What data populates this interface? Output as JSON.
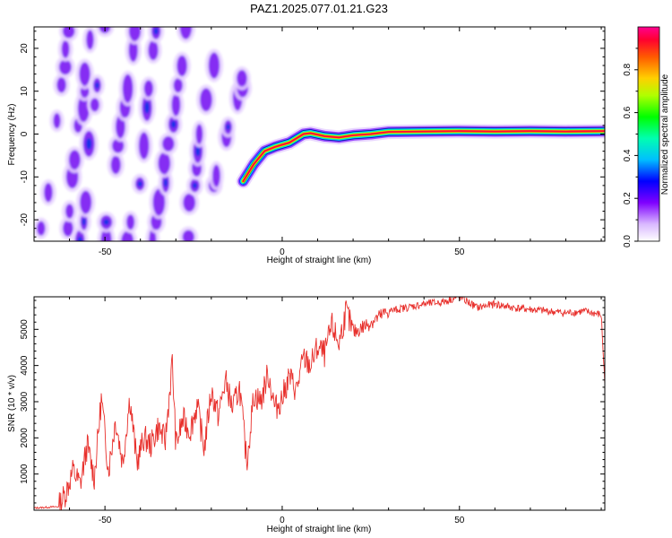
{
  "title": "PAZ1.2025.077.01.21.G23",
  "chart_data": [
    {
      "type": "heatmap",
      "xlabel": "Height of straight line (km)",
      "ylabel": "Frequency (Hz)",
      "xlim": [
        -70,
        91
      ],
      "ylim": [
        -25,
        25
      ],
      "xticks": [
        -50,
        0,
        50
      ],
      "yticks": [
        -20,
        -10,
        0,
        10,
        20
      ],
      "colorbar": {
        "label": "Normalized spectral amplitude",
        "range": [
          0,
          1
        ],
        "ticks": [
          0.0,
          0.2,
          0.4,
          0.6,
          0.8
        ],
        "tick_labels": [
          "0.0",
          "0.2",
          "0.4",
          "0.6",
          "0.8"
        ]
      },
      "ridge": {
        "height_km": [
          -11,
          -8,
          -5,
          -2,
          0,
          2,
          4,
          6,
          8,
          12,
          16,
          20,
          25,
          30,
          40,
          50,
          60,
          70,
          80,
          91
        ],
        "frequency_hz": [
          -11,
          -7,
          -4,
          -3,
          -2.5,
          -2,
          -1,
          0,
          0.2,
          -0.5,
          -0.8,
          -0.3,
          0,
          0.5,
          0.6,
          0.7,
          0.6,
          0.7,
          0.6,
          0.7
        ]
      },
      "streaks": [
        {
          "x0": -68,
          "x1": -60,
          "y0": -22,
          "y1": 24
        },
        {
          "x0": -61,
          "x1": -54,
          "y0": -22,
          "y1": 22
        },
        {
          "x0": -57,
          "x1": -50,
          "y0": -25,
          "y1": 25
        },
        {
          "x0": -50,
          "x1": -42,
          "y0": -25,
          "y1": 24
        },
        {
          "x0": -43,
          "x1": -35,
          "y0": -25,
          "y1": 24
        },
        {
          "x0": -36,
          "x1": -27,
          "y0": -25,
          "y1": 25
        },
        {
          "x0": -27,
          "x1": -19,
          "y0": -24,
          "y1": 20
        },
        {
          "x0": -19,
          "x1": -11,
          "y0": -12,
          "y1": 13
        }
      ]
    },
    {
      "type": "line",
      "xlabel": "Height of straight line (km)",
      "ylabel": "SNR (10 * v/v)",
      "xlim": [
        -70,
        91
      ],
      "ylim": [
        0,
        5900
      ],
      "xticks": [
        -50,
        0,
        50
      ],
      "yticks": [
        1000,
        2000,
        3000,
        4000,
        5000
      ],
      "color": "#e8302c",
      "x": [
        -70,
        -63,
        -61,
        -59,
        -57,
        -55,
        -53,
        -51,
        -49,
        -47,
        -45,
        -43,
        -41,
        -39,
        -37,
        -35,
        -33,
        -31,
        -30,
        -28,
        -26,
        -24,
        -22,
        -20,
        -18,
        -16,
        -14,
        -12,
        -10,
        -8,
        -6,
        -4,
        -2,
        0,
        2,
        4,
        6,
        8,
        10,
        12,
        14,
        16,
        18,
        20,
        25,
        30,
        35,
        40,
        45,
        50,
        55,
        60,
        65,
        70,
        75,
        80,
        85,
        90,
        91
      ],
      "values": [
        60,
        100,
        500,
        1100,
        700,
        1800,
        900,
        3100,
        1100,
        2500,
        1300,
        3100,
        1300,
        2000,
        1800,
        2300,
        1900,
        4100,
        1800,
        2500,
        2200,
        2900,
        1700,
        3300,
        2600,
        3600,
        2800,
        3400,
        1300,
        3200,
        3000,
        3800,
        2800,
        3100,
        3700,
        3300,
        4200,
        4000,
        4500,
        4300,
        5100,
        4600,
        5500,
        4900,
        5200,
        5500,
        5600,
        5700,
        5750,
        5900,
        5600,
        5700,
        5600,
        5550,
        5500,
        5450,
        5500,
        5400,
        3500
      ]
    }
  ]
}
